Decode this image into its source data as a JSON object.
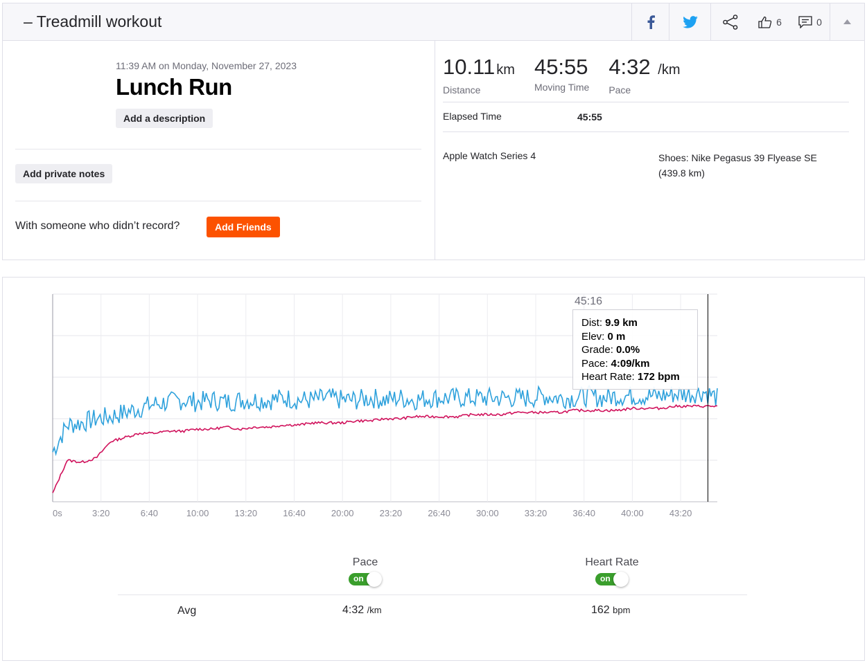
{
  "header": {
    "title": "– Treadmill workout",
    "kudos_count": "6",
    "comment_count": "0"
  },
  "activity": {
    "timestamp": "11:39 AM on Monday, November 27, 2023",
    "name": "Lunch Run",
    "add_description_label": "Add a description",
    "add_private_notes_label": "Add private notes",
    "with_someone_text": "With someone who didn’t record?",
    "add_friends_label": "Add Friends"
  },
  "stats": {
    "distance": {
      "value": "10.11",
      "unit": "km",
      "label": "Distance"
    },
    "moving_time": {
      "value": "45:55",
      "label": "Moving Time"
    },
    "pace": {
      "value": "4:32",
      "unit": "/km",
      "label": "Pace"
    },
    "elapsed_label": "Elapsed Time",
    "elapsed_value": "45:55",
    "device": "Apple Watch Series 4",
    "shoes": "Shoes: Nike Pegasus 39 Flyease SE (439.8 km)"
  },
  "colors": {
    "pace": "#2ea1dc",
    "heart_rate": "#d0115b",
    "brand": "#fc5200",
    "toggle_on": "#3a9e2c"
  },
  "chart_data": {
    "type": "line",
    "x_tick_labels": [
      "0s",
      "3:20",
      "6:40",
      "10:00",
      "13:20",
      "16:40",
      "20:00",
      "23:20",
      "26:40",
      "30:00",
      "33:20",
      "36:40",
      "40:00",
      "43:20"
    ],
    "x_range_seconds": [
      0,
      2755
    ],
    "grid": true,
    "series": [
      {
        "name": "Pace",
        "color": "#2ea1dc",
        "x_seconds": [
          0,
          60,
          120,
          180,
          240,
          300,
          360,
          420,
          480,
          540,
          600,
          660,
          720,
          780,
          840,
          900,
          960,
          1020,
          1080,
          1140,
          1200,
          1260,
          1320,
          1380,
          1440,
          1500,
          1560,
          1620,
          1680,
          1740,
          1800,
          1860,
          1920,
          1980,
          2040,
          2100,
          2160,
          2220,
          2280,
          2340,
          2400,
          2460,
          2520,
          2580,
          2640,
          2700,
          2755
        ],
        "relative_level": [
          0.24,
          0.37,
          0.38,
          0.4,
          0.41,
          0.43,
          0.45,
          0.47,
          0.48,
          0.49,
          0.48,
          0.49,
          0.48,
          0.49,
          0.49,
          0.49,
          0.5,
          0.49,
          0.49,
          0.5,
          0.49,
          0.49,
          0.5,
          0.49,
          0.5,
          0.49,
          0.5,
          0.5,
          0.5,
          0.5,
          0.5,
          0.5,
          0.5,
          0.5,
          0.51,
          0.5,
          0.5,
          0.51,
          0.5,
          0.51,
          0.51,
          0.51,
          0.51,
          0.52,
          0.52,
          0.53,
          0.5
        ]
      },
      {
        "name": "Heart Rate",
        "color": "#d0115b",
        "x_seconds": [
          0,
          60,
          120,
          180,
          240,
          300,
          360,
          420,
          480,
          540,
          600,
          660,
          720,
          780,
          840,
          900,
          960,
          1020,
          1080,
          1140,
          1200,
          1260,
          1320,
          1380,
          1440,
          1500,
          1560,
          1620,
          1680,
          1740,
          1800,
          1860,
          1920,
          1980,
          2040,
          2100,
          2160,
          2220,
          2280,
          2340,
          2400,
          2460,
          2520,
          2580,
          2640,
          2700,
          2755
        ],
        "relative_level": [
          0.04,
          0.2,
          0.19,
          0.21,
          0.29,
          0.31,
          0.33,
          0.33,
          0.34,
          0.34,
          0.35,
          0.35,
          0.36,
          0.35,
          0.36,
          0.36,
          0.37,
          0.37,
          0.38,
          0.38,
          0.38,
          0.39,
          0.39,
          0.4,
          0.4,
          0.41,
          0.41,
          0.41,
          0.41,
          0.42,
          0.42,
          0.42,
          0.43,
          0.43,
          0.43,
          0.43,
          0.44,
          0.44,
          0.44,
          0.44,
          0.45,
          0.45,
          0.45,
          0.46,
          0.46,
          0.46,
          0.46
        ]
      }
    ],
    "cursor_seconds": 2716,
    "tooltip": {
      "time": "45:16",
      "rows": [
        {
          "label": "Dist:",
          "value": "9.9 km"
        },
        {
          "label": "Elev:",
          "value": "0 m"
        },
        {
          "label": "Grade:",
          "value": "0.0%"
        },
        {
          "label": "Pace:",
          "value": "4:09/km"
        },
        {
          "label": "Heart Rate:",
          "value": "172 bpm"
        }
      ]
    }
  },
  "legend": {
    "pace_label": "Pace",
    "hr_label": "Heart Rate",
    "toggle_on_text": "on",
    "avg_label": "Avg",
    "avg_pace_value": "4:32",
    "avg_pace_unit": "/km",
    "avg_hr_value": "162",
    "avg_hr_unit": "bpm"
  }
}
